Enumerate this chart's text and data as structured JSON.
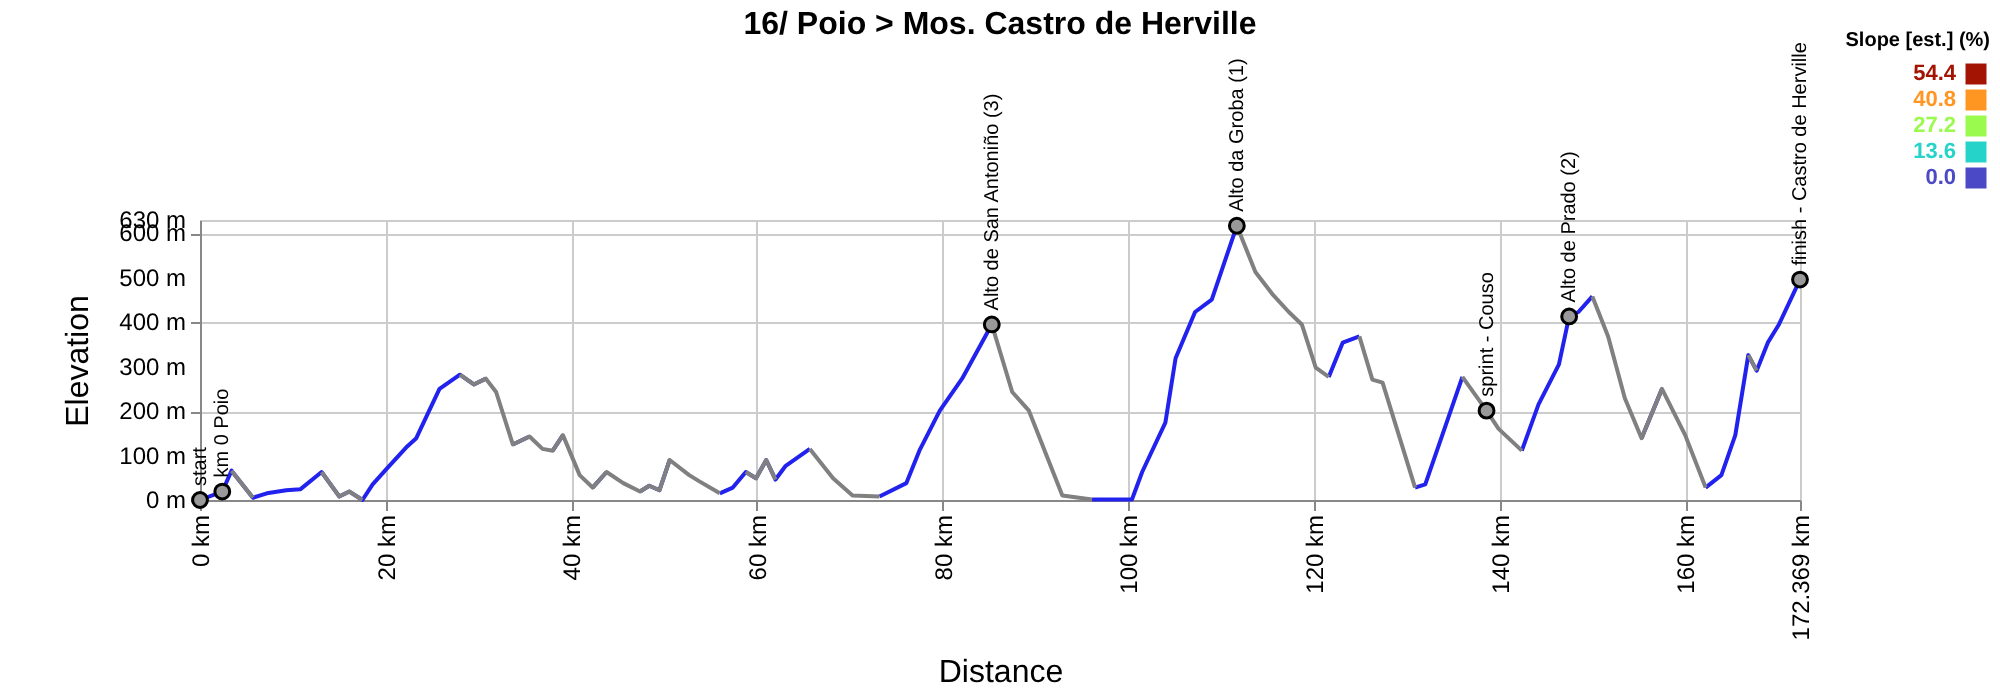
{
  "chart_data": {
    "type": "line",
    "title": "16/ Poio > Mos. Castro de Herville",
    "xlabel": "Distance",
    "ylabel": "Elevation",
    "x": [
      0,
      2.4,
      3.4,
      5.7,
      7.2,
      9.3,
      10.8,
      13.1,
      15.0,
      16.1,
      17.5,
      18.6,
      20.1,
      22.2,
      23.3,
      24.4,
      25.8,
      28.0,
      29.5,
      30.8,
      31.9,
      33.7,
      35.5,
      36.9,
      38.0,
      39.1,
      40.9,
      42.3,
      43.8,
      45.6,
      47.4,
      48.4,
      49.5,
      50.6,
      52.7,
      53.8,
      56.0,
      57.4,
      58.8,
      59.9,
      61.0,
      62.0,
      63.1,
      65.7,
      68.2,
      70.3,
      73.2,
      76.1,
      77.5,
      79.7,
      82.1,
      85.3,
      87.5,
      89.3,
      92.9,
      96.1,
      100.4,
      101.5,
      104.0,
      105.1,
      107.2,
      109.0,
      111.7,
      113.7,
      115.5,
      117.3,
      118.7,
      120.2,
      121.6,
      123.1,
      124.9,
      126.3,
      127.4,
      130.9,
      132.0,
      136.0,
      138.6,
      139.9,
      142.4,
      144.2,
      146.4,
      147.5,
      148.5,
      150.0,
      151.7,
      153.5,
      155.3,
      157.5,
      160.0,
      162.2,
      163.9,
      165.4,
      166.8,
      167.7,
      168.9,
      170.1,
      172.369
    ],
    "series": [
      {
        "type": "line",
        "color": "#2222ee",
        "values": [
          0,
          19,
          66,
          5,
          15,
          22,
          24,
          63,
          8,
          19,
          0,
          35,
          70,
          118,
          139,
          188,
          250,
          282,
          260,
          273,
          null,
          125,
          143,
          null,
          111,
          146,
          null,
          28,
          63,
          null,
          19,
          32,
          22,
          90,
          null,
          null,
          15,
          28,
          63,
          49,
          90,
          46,
          77,
          115,
          null,
          null,
          8,
          38,
          111,
          201,
          273,
          395,
          null,
          null,
          null,
          1,
          1,
          63,
          174,
          319,
          423,
          451,
          617,
          null,
          null,
          null,
          null,
          null,
          277,
          354,
          368,
          null,
          null,
          28,
          35,
          277,
          null,
          null,
          111,
          215,
          305,
          413,
          423,
          458,
          null,
          null,
          139,
          250,
          null,
          28,
          56,
          146,
          326,
          291,
          354,
          395,
          496
        ]
      },
      {
        "type": "line",
        "color": "#808080",
        "values": [
          null,
          null,
          66,
          5,
          null,
          null,
          null,
          63,
          8,
          19,
          0,
          null,
          null,
          null,
          null,
          null,
          null,
          282,
          260,
          273,
          243,
          125,
          143,
          115,
          111,
          146,
          56,
          28,
          63,
          38,
          19,
          32,
          22,
          90,
          56,
          42,
          15,
          null,
          63,
          49,
          90,
          46,
          null,
          115,
          49,
          10,
          8,
          null,
          null,
          null,
          null,
          395,
          243,
          201,
          10,
          1,
          null,
          null,
          null,
          null,
          null,
          null,
          617,
          513,
          464,
          423,
          395,
          298,
          277,
          null,
          368,
          271,
          264,
          28,
          null,
          277,
          201,
          160,
          111,
          null,
          null,
          null,
          null,
          458,
          368,
          229,
          139,
          250,
          146,
          28,
          null,
          null,
          326,
          291,
          null,
          null,
          null
        ]
      },
      {
        "type": "scatter",
        "color": "#000000",
        "marker": "circle",
        "x": [
          0,
          2.4,
          85.3,
          111.7,
          138.6,
          147.5,
          172.369
        ],
        "values": [
          0,
          19,
          395,
          617,
          201,
          413,
          496
        ]
      }
    ],
    "annotations": [
      {
        "text": "start",
        "x": 0,
        "y": 0
      },
      {
        "text": "km 0 Poio",
        "x": 2.4,
        "y": 19
      },
      {
        "text": "Alto de San Antoniño (3)",
        "x": 85.3,
        "y": 395
      },
      {
        "text": "Alto da Groba (1)",
        "x": 111.7,
        "y": 617
      },
      {
        "text": "sprint - Couso",
        "x": 138.6,
        "y": 201
      },
      {
        "text": "Alto de Prado (2)",
        "x": 147.5,
        "y": 413
      },
      {
        "text": "finish - Castro de Herville",
        "x": 172.369,
        "y": 496
      }
    ],
    "xlim": [
      0,
      172.369
    ],
    "xticks": [
      {
        "value": 0,
        "label": "0 km"
      },
      {
        "value": 20,
        "label": "20 km"
      },
      {
        "value": 40,
        "label": "40 km"
      },
      {
        "value": 60,
        "label": "60 km"
      },
      {
        "value": 80,
        "label": "80 km"
      },
      {
        "value": 100,
        "label": "100 km"
      },
      {
        "value": 120,
        "label": "120 km"
      },
      {
        "value": 140,
        "label": "140 km"
      },
      {
        "value": 160,
        "label": "160 km"
      },
      {
        "value": 172.369,
        "label": "172.369 km"
      }
    ],
    "ylim": [
      0,
      630
    ],
    "yticks": [
      {
        "value": 0,
        "label": "0 m"
      },
      {
        "value": 100,
        "label": "100 m"
      },
      {
        "value": 200,
        "label": "200 m"
      },
      {
        "value": 300,
        "label": "300 m"
      },
      {
        "value": 400,
        "label": "400 m"
      },
      {
        "value": 500,
        "label": "500 m"
      },
      {
        "value": 600,
        "label": "600 m"
      },
      {
        "value": 630,
        "label": "630 m"
      }
    ],
    "grid": true,
    "clabel": "Slope [est.] (%)",
    "clim": [
      0,
      54.4
    ],
    "cticks": [
      54.4,
      40.8,
      27.2,
      13.6,
      {
        "value": 0,
        "label": "0.0"
      }
    ]
  }
}
